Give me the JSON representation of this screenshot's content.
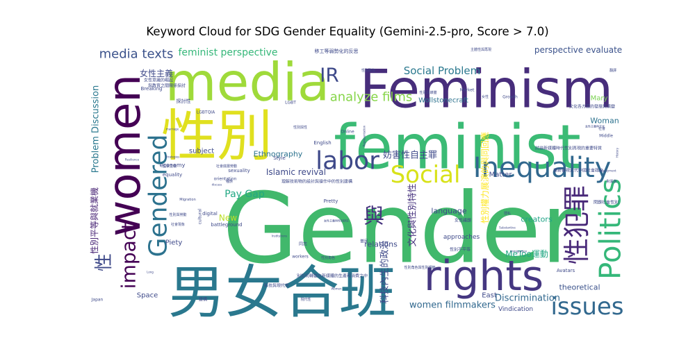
{
  "chart_data": {
    "type": "wordcloud",
    "title": "Keyword Cloud for SDG Gender Equality (Gemini-2.5-pro, Score > 7.0)",
    "colormap": "viridis",
    "background": "#ffffff",
    "words": [
      {
        "text": "Gender",
        "weight": 100,
        "color": "#41b86c"
      },
      {
        "text": "男女合班",
        "weight": 62,
        "color": "#2a788e"
      },
      {
        "text": "feminist",
        "weight": 60,
        "color": "#3bbb75"
      },
      {
        "text": "Feminism",
        "weight": 55,
        "color": "#472d7b"
      },
      {
        "text": "性別",
        "weight": 52,
        "color": "#e0e01f"
      },
      {
        "text": "media",
        "weight": 48,
        "color": "#9fda3a"
      },
      {
        "text": "women",
        "weight": 44,
        "color": "#440154"
      },
      {
        "text": "rights",
        "weight": 42,
        "color": "#453781"
      },
      {
        "text": "Inequality",
        "weight": 30,
        "color": "#31688e"
      },
      {
        "text": "Politics",
        "weight": 30,
        "color": "#35b779"
      },
      {
        "text": "Gendered",
        "weight": 30,
        "color": "#2c728e"
      },
      {
        "text": "性犯罪",
        "weight": 30,
        "color": "#482878"
      },
      {
        "text": "labor",
        "weight": 28,
        "color": "#3e4989"
      },
      {
        "text": "issues",
        "weight": 26,
        "color": "#31688e"
      },
      {
        "text": "Social",
        "weight": 26,
        "color": "#d8e219"
      },
      {
        "text": "impact",
        "weight": 24,
        "color": "#440154"
      },
      {
        "text": "與",
        "weight": 24,
        "color": "#46327e"
      },
      {
        "text": "性",
        "weight": 22,
        "color": "#3e4989"
      },
      {
        "text": "IR",
        "weight": 22,
        "color": "#3e4989"
      },
      {
        "text": "analyze films",
        "weight": 14,
        "color": "#86d549"
      },
      {
        "text": "media texts",
        "weight": 14,
        "color": "#3b528b"
      },
      {
        "text": "Social Problem",
        "weight": 12,
        "color": "#2a788e"
      },
      {
        "text": "feminist perspective",
        "weight": 11,
        "color": "#35b779"
      },
      {
        "text": "perspective evaluate",
        "weight": 9,
        "color": "#3b528b"
      },
      {
        "text": "妨害性自主罪",
        "weight": 9,
        "color": "#3e4989"
      },
      {
        "text": "Pay Gap",
        "weight": 10,
        "color": "#22a884"
      },
      {
        "text": "women filmmakers",
        "weight": 9,
        "color": "#31688e"
      },
      {
        "text": "Discrimination",
        "weight": 9,
        "color": "#31688e"
      },
      {
        "text": "Islamic revival",
        "weight": 9,
        "color": "#3e4989"
      },
      {
        "text": "Problem Discussion",
        "weight": 10,
        "color": "#2a788e"
      },
      {
        "text": "性別平等與就業機",
        "weight": 10,
        "color": "#482475"
      },
      {
        "text": "文化與性別特性",
        "weight": 10,
        "color": "#46327e"
      },
      {
        "text": "科技內生的政治",
        "weight": 10,
        "color": "#3e4989"
      },
      {
        "text": "性別權力展演的與同回應",
        "weight": 10,
        "color": "#fde725"
      },
      {
        "text": "女性主義",
        "weight": 8,
        "color": "#3e4989"
      },
      {
        "text": "Woman",
        "weight": 8,
        "color": "#2c728e"
      },
      {
        "text": "Wollstonecraft",
        "weight": 7,
        "color": "#2c728e"
      },
      {
        "text": "Ethnography",
        "weight": 8,
        "color": "#2c728e"
      },
      {
        "text": "MeToo運動",
        "weight": 8,
        "color": "#22a884"
      },
      {
        "text": "language",
        "weight": 8,
        "color": "#3e4989"
      },
      {
        "text": "creators",
        "weight": 8,
        "color": "#20a386"
      },
      {
        "text": "theoretical",
        "weight": 8,
        "color": "#3b528b"
      },
      {
        "text": "relations",
        "weight": 8,
        "color": "#3e4989"
      },
      {
        "text": "Matter",
        "weight": 7,
        "color": "#3e4989"
      },
      {
        "text": "New",
        "weight": 8,
        "color": "#bddf26"
      },
      {
        "text": "Piety",
        "weight": 7,
        "color": "#3e4989"
      },
      {
        "text": "Space",
        "weight": 7,
        "color": "#3e4989"
      },
      {
        "text": "East",
        "weight": 7,
        "color": "#3e4989"
      },
      {
        "text": "Mary",
        "weight": 7,
        "color": "#7ad151"
      },
      {
        "text": "subject",
        "weight": 7,
        "color": "#3e4989"
      },
      {
        "text": "approaches",
        "weight": 6,
        "color": "#3e4989"
      },
      {
        "text": "Vindication",
        "weight": 6,
        "color": "#3e4989"
      },
      {
        "text": "Pretty",
        "weight": 5,
        "color": "#3e4989"
      },
      {
        "text": "Online",
        "weight": 5,
        "color": "#3e4989"
      },
      {
        "text": "English",
        "weight": 5,
        "color": "#3e4989"
      },
      {
        "text": "LGBT",
        "weight": 4,
        "color": "#3e4989"
      },
      {
        "text": "LGBTQIA",
        "weight": 4,
        "color": "#3e4989"
      },
      {
        "text": "Style",
        "weight": 5,
        "color": "#3e4989"
      },
      {
        "text": "Market",
        "weight": 4,
        "color": "#3e4989"
      },
      {
        "text": "Growth",
        "weight": 4,
        "color": "#3e4989"
      },
      {
        "text": "Middle",
        "weight": 4,
        "color": "#3e4989"
      },
      {
        "text": "economy",
        "weight": 5,
        "color": "#3e4989"
      },
      {
        "text": "equality",
        "weight": 5,
        "color": "#3e4989"
      },
      {
        "text": "sexuality",
        "weight": 5,
        "color": "#3e4989"
      },
      {
        "text": "orientation",
        "weight": 4,
        "color": "#3e4989"
      },
      {
        "text": "cultural",
        "weight": 4,
        "color": "#3e4989"
      },
      {
        "text": "digital",
        "weight": 4,
        "color": "#3e4989"
      },
      {
        "text": "battleground",
        "weight": 4,
        "color": "#3e4989"
      },
      {
        "text": "workers",
        "weight": 4,
        "color": "#3e4989"
      },
      {
        "text": "Breaking",
        "weight": 4,
        "color": "#3e4989"
      },
      {
        "text": "Japan",
        "weight": 4,
        "color": "#3e4989"
      },
      {
        "text": "Avatars",
        "weight": 4,
        "color": "#3e4989"
      },
      {
        "text": "Migration",
        "weight": 3,
        "color": "#3e4989"
      },
      {
        "text": "Resilience",
        "weight": 3,
        "color": "#3e4989"
      },
      {
        "text": "Strategies",
        "weight": 3,
        "color": "#3e4989"
      },
      {
        "text": "Substantive",
        "weight": 3,
        "color": "#3e4989"
      },
      {
        "text": "Institutions",
        "weight": 3,
        "color": "#3e4989"
      },
      {
        "text": "discuss",
        "weight": 3,
        "color": "#3e4989"
      },
      {
        "text": "Women",
        "weight": 3,
        "color": "#3e4989"
      },
      {
        "text": "employment",
        "weight": 3,
        "color": "#3e4989"
      },
      {
        "text": "immigration",
        "weight": 3,
        "color": "#3e4989"
      },
      {
        "text": "History",
        "weight": 3,
        "color": "#3e4989"
      },
      {
        "text": "Representation",
        "weight": 3,
        "color": "#3e4989"
      },
      {
        "text": "Long",
        "weight": 3,
        "color": "#3e4989"
      },
      {
        "text": "marriage",
        "weight": 3,
        "color": "#3e4989"
      },
      {
        "text": "移工等弱勢化的反思",
        "weight": 5,
        "color": "#3e4989"
      },
      {
        "text": "主體性與再現",
        "weight": 4,
        "color": "#3e4989"
      },
      {
        "text": "文化各方面的發展與演變",
        "weight": 5,
        "color": "#3e4989"
      },
      {
        "text": "女性主義與文化",
        "weight": 4,
        "color": "#3e4989"
      },
      {
        "text": "女性意識的崛起",
        "weight": 5,
        "color": "#3e4989"
      },
      {
        "text": "與教育之間關係探討",
        "weight": 5,
        "color": "#3e4989"
      },
      {
        "text": "探討性",
        "weight": 5,
        "color": "#3e4989"
      },
      {
        "text": "討論新媒體時代性別再現的重要特質",
        "weight": 5,
        "color": "#3e4989"
      },
      {
        "text": "重新審視近代中國社會政治",
        "weight": 4,
        "color": "#3e4989"
      },
      {
        "text": "理解技術物的設計與操作中的性別建構",
        "weight": 5,
        "color": "#3e4989"
      },
      {
        "text": "國家主義",
        "weight": 4,
        "color": "#3e4989"
      },
      {
        "text": "社會底層勞動",
        "weight": 4,
        "color": "#3e4989"
      },
      {
        "text": "女性議題",
        "weight": 4,
        "color": "#3e4989"
      },
      {
        "text": "性別角色",
        "weight": 4,
        "color": "#3e4989"
      },
      {
        "text": "性別與勞動",
        "weight": 4,
        "color": "#3e4989"
      },
      {
        "text": "性別角色與性別規範",
        "weight": 4,
        "color": "#3e4989"
      },
      {
        "text": "問題社會性別",
        "weight": 4,
        "color": "#3e4989"
      },
      {
        "text": "別如何轉變在新媒體的生產和消費之中",
        "weight": 4,
        "color": "#3e4989"
      },
      {
        "text": "性別與媒體",
        "weight": 4,
        "color": "#3e4989"
      },
      {
        "text": "性別不平等",
        "weight": 4,
        "color": "#3e4989"
      },
      {
        "text": "同志",
        "weight": 4,
        "color": "#3e4989"
      },
      {
        "text": "普民",
        "weight": 4,
        "color": "#3e4989"
      },
      {
        "text": "種族",
        "weight": 4,
        "color": "#3e4989"
      },
      {
        "text": "建構",
        "weight": 4,
        "color": "#3e4989"
      },
      {
        "text": "翻譯",
        "weight": 4,
        "color": "#3e4989"
      },
      {
        "text": "社會",
        "weight": 4,
        "color": "#3e4989"
      },
      {
        "text": "社會現象",
        "weight": 4,
        "color": "#3e4989"
      },
      {
        "text": "科技與現代性",
        "weight": 4,
        "color": "#3e4989"
      },
      {
        "text": "現代性",
        "weight": 4,
        "color": "#3e4989"
      },
      {
        "text": "女性",
        "weight": 4,
        "color": "#3e4989"
      },
      {
        "text": "性別與性",
        "weight": 4,
        "color": "#3e4989"
      },
      {
        "text": "性別政治",
        "weight": 4,
        "color": "#3e4989"
      },
      {
        "text": "對異裝",
        "weight": 4,
        "color": "#3e4989"
      },
      {
        "text": "女性主義與性別研究",
        "weight": 4,
        "color": "#3e4989"
      },
      {
        "text": "隱私",
        "weight": 4,
        "color": "#3e4989"
      }
    ]
  }
}
